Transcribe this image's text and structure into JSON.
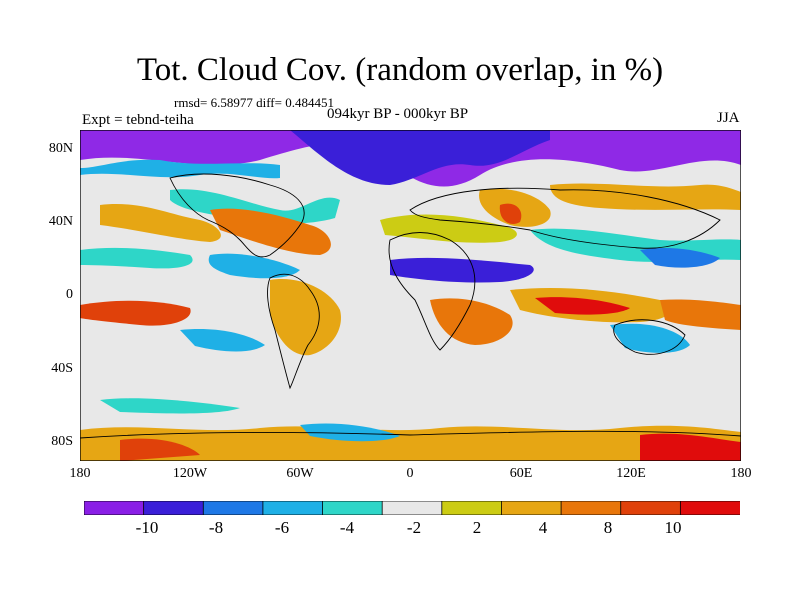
{
  "title": "Tot. Cloud Cov. (random overlap, in %)",
  "stats": "rmsd= 6.58977 diff= 0.484451",
  "experiment": "Expt = tebnd-teiha",
  "period": "094kyr BP - 000kyr BP",
  "season": "JJA",
  "y_ticks": [
    "80N",
    "40N",
    "0",
    "40S",
    "80S"
  ],
  "x_ticks": [
    "180",
    "120W",
    "60W",
    "0",
    "60E",
    "120E",
    "180"
  ],
  "colorbar": {
    "labels": [
      "-10",
      "-8",
      "-6",
      "-4",
      "-2",
      "2",
      "4",
      "8",
      "10"
    ],
    "colors": [
      "#8a1fe6",
      "#3a1fd8",
      "#1e78e6",
      "#1fb0e6",
      "#2ed6c8",
      "#e8e8e8",
      "#cccc14",
      "#e6a614",
      "#e8760a",
      "#e0410a",
      "#e00c0c"
    ]
  }
}
